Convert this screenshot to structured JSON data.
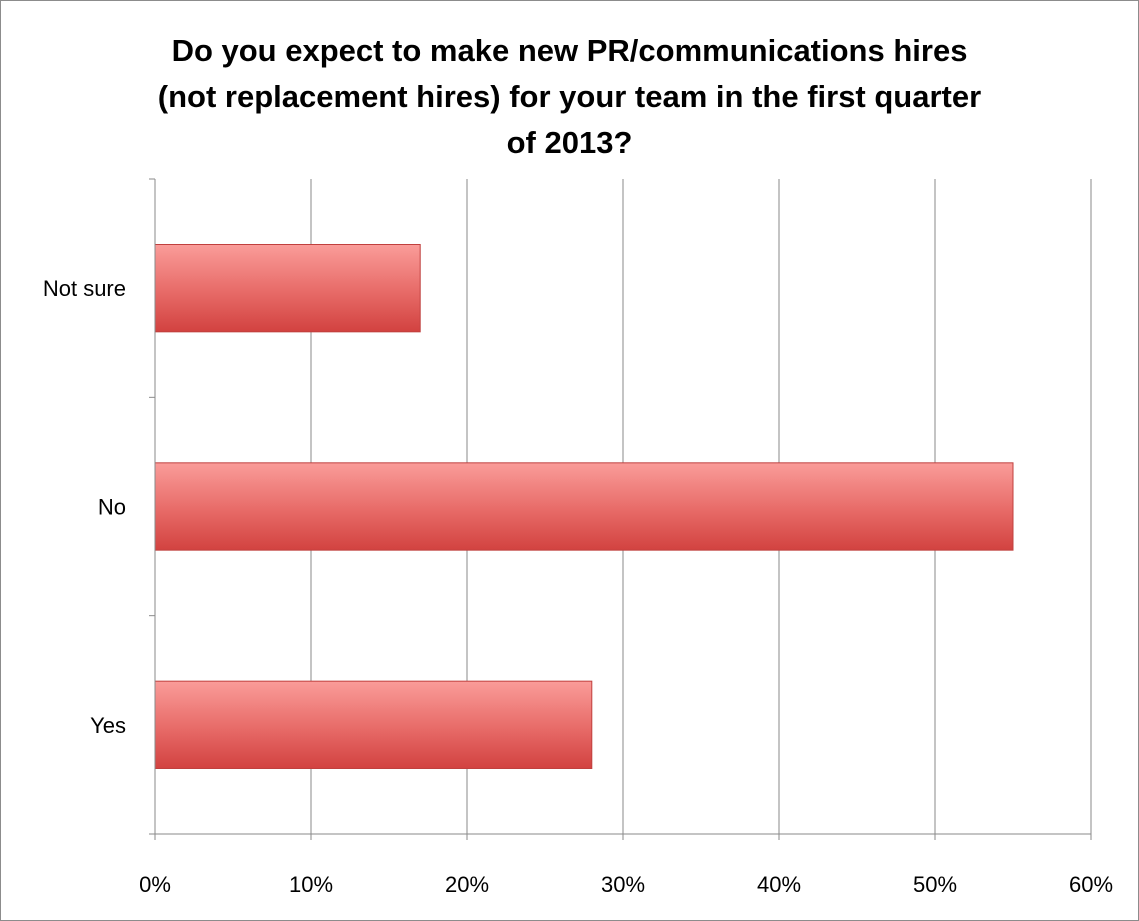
{
  "chart_data": {
    "type": "bar",
    "orientation": "horizontal",
    "title_lines": [
      "Do you expect to make new PR/communications hires",
      "(not replacement hires) for your team in the first quarter",
      "of 2013?"
    ],
    "categories": [
      "Not sure",
      "No",
      "Yes"
    ],
    "values": [
      17,
      55,
      28
    ],
    "value_unit": "%",
    "xlim": [
      0,
      60
    ],
    "x_ticks": [
      "0%",
      "10%",
      "20%",
      "30%",
      "40%",
      "50%",
      "60%"
    ],
    "grid": true,
    "legend": false,
    "bar_color": "#e25a58"
  }
}
